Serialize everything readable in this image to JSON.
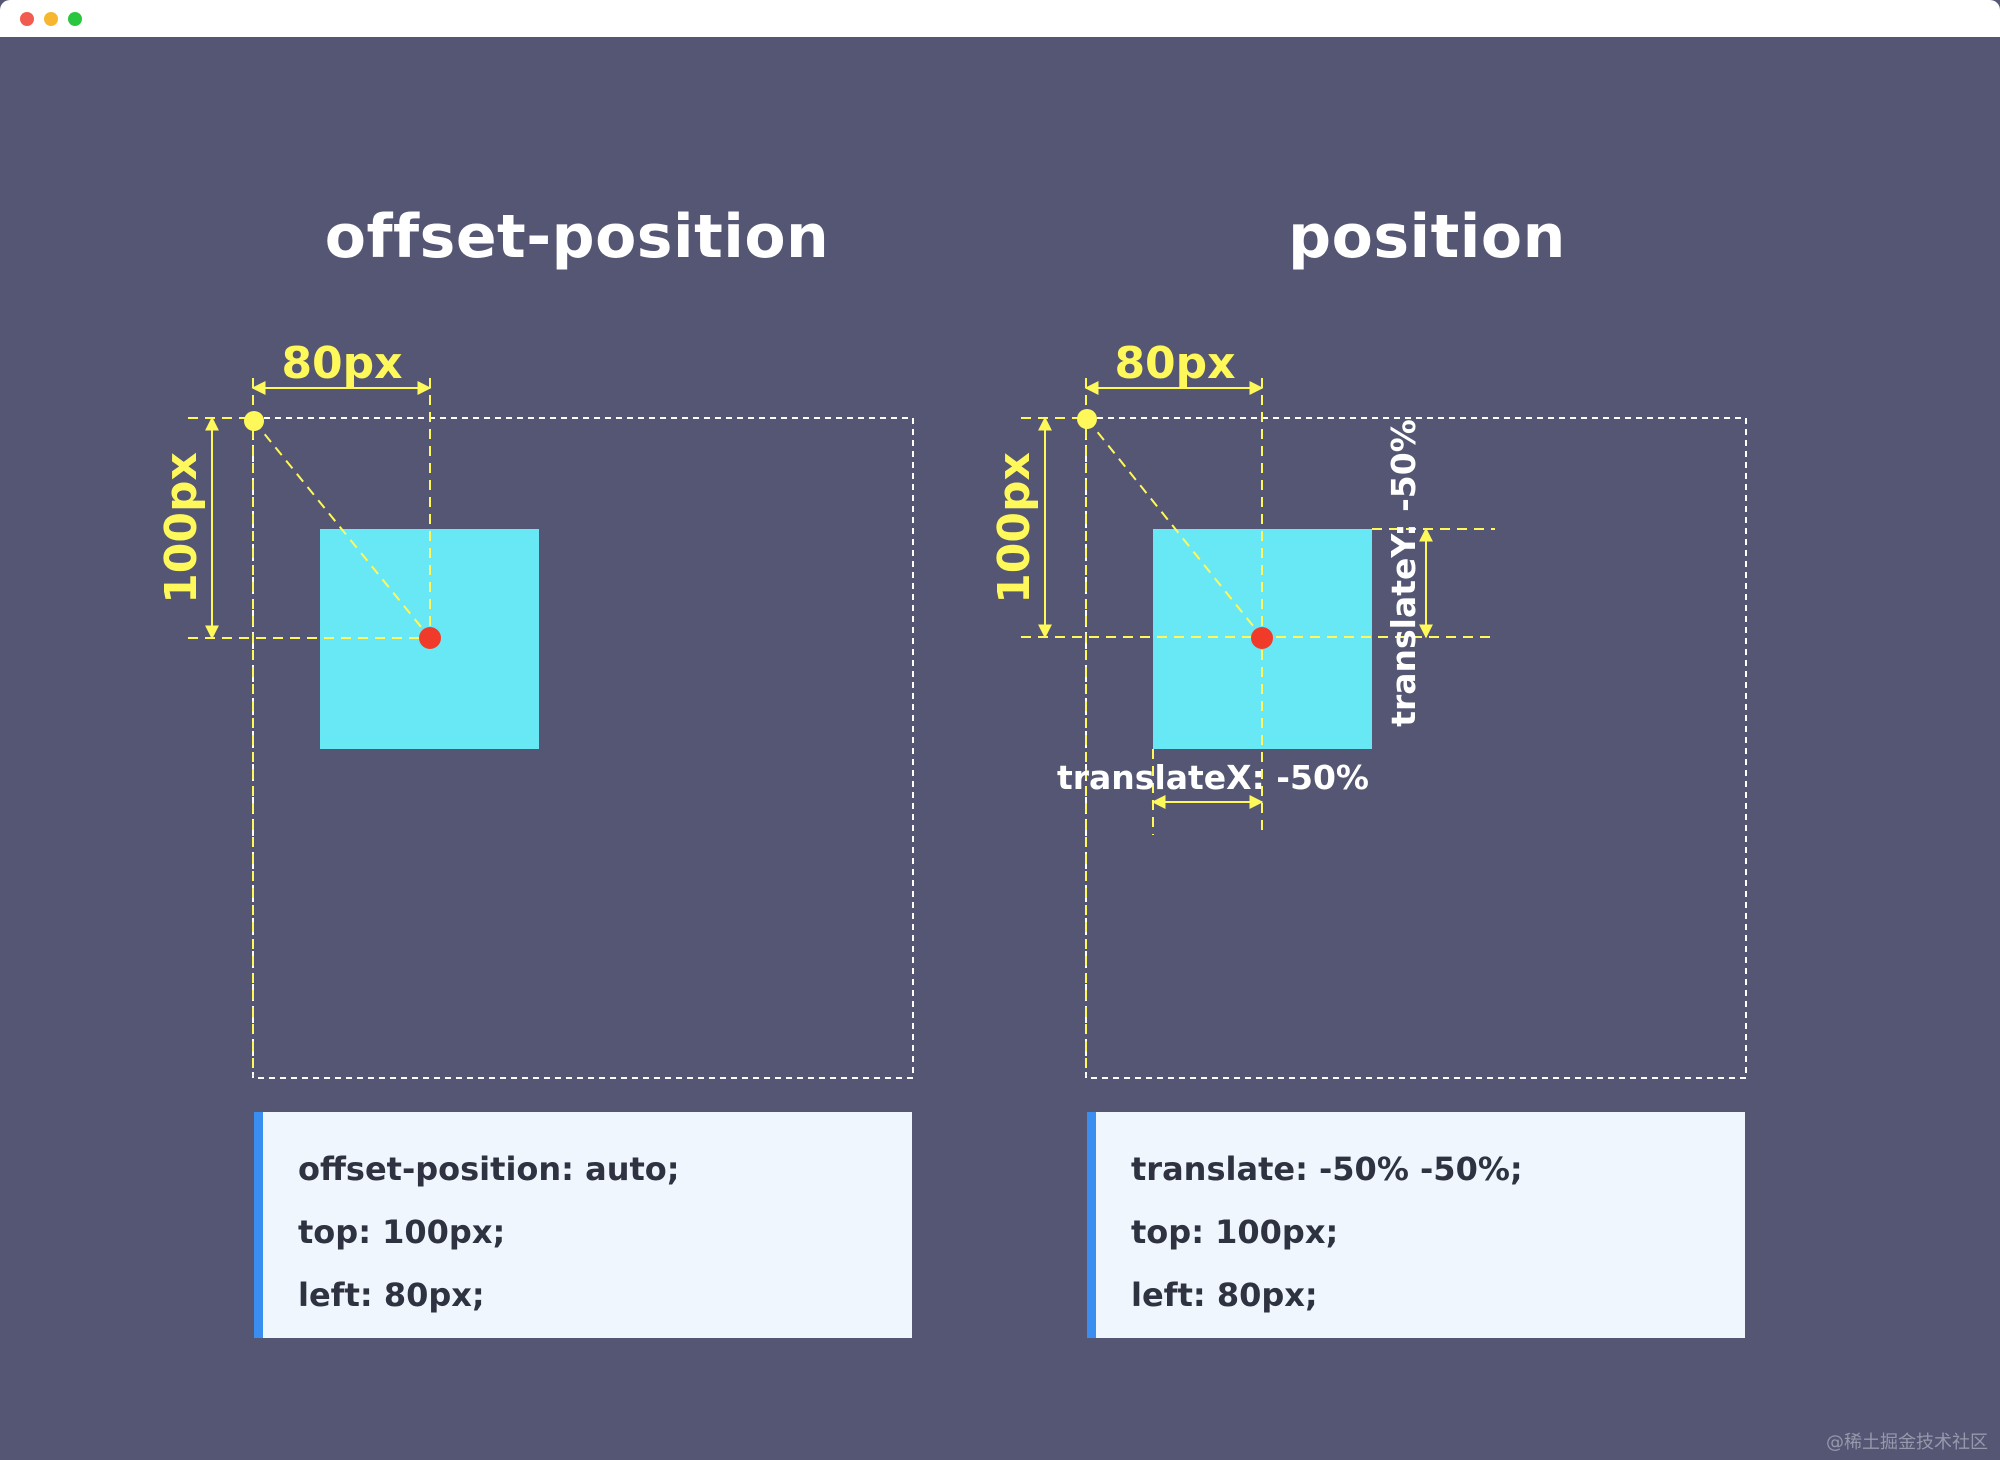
{
  "panels": [
    {
      "title": "offset-position",
      "width_label": "80px",
      "height_label": "100px",
      "code": [
        "offset-position: auto;",
        "top: 100px;",
        "left: 80px;"
      ]
    },
    {
      "title": "position",
      "width_label": "80px",
      "height_label": "100px",
      "translate_x_label": "translateX: -50%",
      "translate_y_label": "translateY: -50%",
      "code": [
        "translate: -50% -50%;",
        "top: 100px;",
        "left: 80px;"
      ]
    }
  ],
  "watermark": "@稀土掘金技术社区",
  "colors": {
    "background": "#545673",
    "box": "#68e8f5",
    "guide": "#fef85a",
    "anchor_dot": "#f13b2a",
    "origin_dot": "#fef85a",
    "code_background": "#eff6fe",
    "code_accent": "#3a8eef"
  }
}
